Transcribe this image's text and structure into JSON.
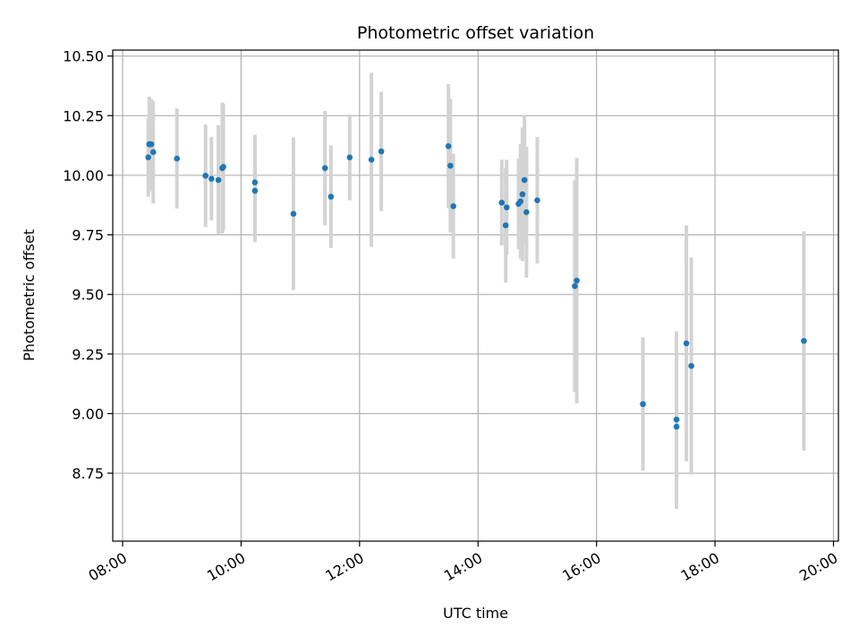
{
  "chart_data": {
    "type": "scatter",
    "title": "Photometric offset variation",
    "xlabel": "UTC time",
    "ylabel": "Photometric offset",
    "x_axis": "time",
    "xlim": [
      "07:50",
      "20:05"
    ],
    "ylim": [
      8.465,
      10.525
    ],
    "x_ticks": [
      "08:00",
      "10:00",
      "12:00",
      "14:00",
      "16:00",
      "18:00",
      "20:00"
    ],
    "y_ticks": [
      8.75,
      9.0,
      9.25,
      9.5,
      9.75,
      10.0,
      10.25,
      10.5
    ],
    "y_tick_labels": [
      "8.75",
      "9.00",
      "9.25",
      "9.50",
      "9.75",
      "10.00",
      "10.25",
      "10.50"
    ],
    "grid": true,
    "colors": {
      "point": "#1f77b4",
      "errorbar": "#d3d3d3",
      "grid": "#b0b0b0"
    },
    "points": [
      {
        "x": "08:26",
        "y": 10.075,
        "err": 0.165
      },
      {
        "x": "08:27",
        "y": 10.13,
        "err": 0.2
      },
      {
        "x": "08:29",
        "y": 10.13,
        "err": 0.19
      },
      {
        "x": "08:31",
        "y": 10.097,
        "err": 0.215
      },
      {
        "x": "08:55",
        "y": 10.07,
        "err": 0.21
      },
      {
        "x": "09:24",
        "y": 9.998,
        "err": 0.215
      },
      {
        "x": "09:30",
        "y": 9.985,
        "err": 0.175
      },
      {
        "x": "09:37",
        "y": 9.98,
        "err": 0.23
      },
      {
        "x": "09:41",
        "y": 10.03,
        "err": 0.275
      },
      {
        "x": "09:42",
        "y": 10.035,
        "err": 0.265
      },
      {
        "x": "10:14",
        "y": 9.97,
        "err": 0.2
      },
      {
        "x": "10:14",
        "y": 9.935,
        "err": 0.215
      },
      {
        "x": "10:53",
        "y": 9.838,
        "err": 0.32
      },
      {
        "x": "11:25",
        "y": 10.03,
        "err": 0.24
      },
      {
        "x": "11:31",
        "y": 9.91,
        "err": 0.215
      },
      {
        "x": "11:50",
        "y": 10.075,
        "err": 0.18
      },
      {
        "x": "12:12",
        "y": 10.065,
        "err": 0.365
      },
      {
        "x": "12:22",
        "y": 10.1,
        "err": 0.25
      },
      {
        "x": "13:30",
        "y": 10.122,
        "err": 0.26
      },
      {
        "x": "13:32",
        "y": 10.04,
        "err": 0.28
      },
      {
        "x": "13:35",
        "y": 9.87,
        "err": 0.22
      },
      {
        "x": "14:24",
        "y": 9.885,
        "err": 0.18
      },
      {
        "x": "14:28",
        "y": 9.79,
        "err": 0.24
      },
      {
        "x": "14:29",
        "y": 9.865,
        "err": 0.2
      },
      {
        "x": "14:41",
        "y": 9.88,
        "err": 0.19
      },
      {
        "x": "14:43",
        "y": 9.89,
        "err": 0.24
      },
      {
        "x": "14:45",
        "y": 9.92,
        "err": 0.28
      },
      {
        "x": "14:47",
        "y": 9.98,
        "err": 0.27
      },
      {
        "x": "14:49",
        "y": 9.845,
        "err": 0.275
      },
      {
        "x": "15:00",
        "y": 9.895,
        "err": 0.265
      },
      {
        "x": "15:38",
        "y": 9.535,
        "err": 0.445
      },
      {
        "x": "15:40",
        "y": 9.558,
        "err": 0.515
      },
      {
        "x": "16:47",
        "y": 9.04,
        "err": 0.28
      },
      {
        "x": "17:21",
        "y": 8.975,
        "err": 0.37
      },
      {
        "x": "17:21",
        "y": 8.945,
        "err": 0.345
      },
      {
        "x": "17:31",
        "y": 9.295,
        "err": 0.495
      },
      {
        "x": "17:36",
        "y": 9.2,
        "err": 0.455
      },
      {
        "x": "19:30",
        "y": 9.305,
        "err": 0.46
      }
    ]
  }
}
